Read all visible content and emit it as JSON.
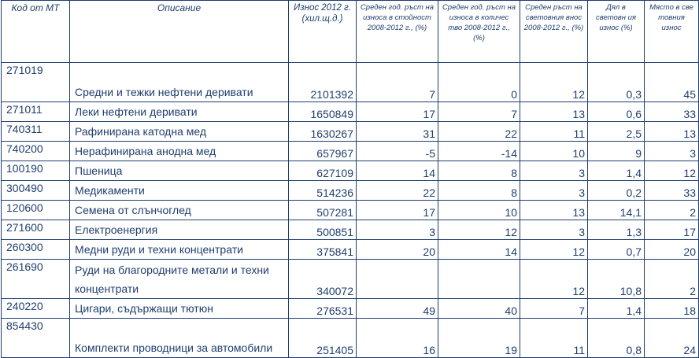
{
  "headers": {
    "code": "Код от МТ",
    "description": "Описание",
    "export": "Износ 2012 г. (хил.щ.д.)",
    "growth_value": "Среден год. ръст на износа в стойност 2008-2012 г., (%)",
    "growth_quantity": "Среден год. ръст на износа в количес тво 2008-2012 г., (%)",
    "world_growth": "Среден ръст на световния внос 2008-2012 г., (%)",
    "world_share": "Дял в световн ия износ (%)",
    "world_rank": "Място в све товния износ"
  },
  "rows": [
    {
      "code": "271019",
      "description": "Средни и тежки нефтени деривати",
      "export": "2101392",
      "growth_value": "7",
      "growth_quantity": "0",
      "world_growth": "12",
      "world_share": "0,3",
      "world_rank": "45"
    },
    {
      "code": "271011",
      "description": "Леки нефтени деривати",
      "export": "1650849",
      "growth_value": "17",
      "growth_quantity": "7",
      "world_growth": "13",
      "world_share": "0,6",
      "world_rank": "33"
    },
    {
      "code": "740311",
      "description": "Рафинирана катодна мед",
      "export": "1630267",
      "growth_value": "31",
      "growth_quantity": "22",
      "world_growth": "11",
      "world_share": "2,5",
      "world_rank": "13"
    },
    {
      "code": "740200",
      "description": "Нерафинирана анодна мед",
      "export": "657967",
      "growth_value": "-5",
      "growth_quantity": "-14",
      "world_growth": "10",
      "world_share": "9",
      "world_rank": "3"
    },
    {
      "code": "100190",
      "description": "Пшеница",
      "export": "627109",
      "growth_value": "14",
      "growth_quantity": "8",
      "world_growth": "3",
      "world_share": "1,4",
      "world_rank": "12"
    },
    {
      "code": "300490",
      "description": "Медикаменти",
      "export": "514236",
      "growth_value": "22",
      "growth_quantity": "8",
      "world_growth": "3",
      "world_share": "0,2",
      "world_rank": "33"
    },
    {
      "code": "120600",
      "description": "Семена от слънчоглед",
      "export": "507281",
      "growth_value": "17",
      "growth_quantity": "10",
      "world_growth": "13",
      "world_share": "14,1",
      "world_rank": "2"
    },
    {
      "code": "271600",
      "description": "Електроенергия",
      "export": "500851",
      "growth_value": "3",
      "growth_quantity": "12",
      "world_growth": "3",
      "world_share": "1,3",
      "world_rank": "17"
    },
    {
      "code": "260300",
      "description": "Медни руди и техни концентрати",
      "export": "375841",
      "growth_value": "20",
      "growth_quantity": "14",
      "world_growth": "12",
      "world_share": "0,7",
      "world_rank": "20"
    },
    {
      "code": "261690",
      "description": "Руди на благородните метали и техни концентрати",
      "export": "340072",
      "growth_value": "",
      "growth_quantity": "",
      "world_growth": "12",
      "world_share": "10,8",
      "world_rank": "2"
    },
    {
      "code": "240220",
      "description": "Цигари, съдържащи тютюн",
      "export": "276531",
      "growth_value": "49",
      "growth_quantity": "40",
      "world_growth": "7",
      "world_share": "1,4",
      "world_rank": "18"
    },
    {
      "code": "854430",
      "description": "Комплекти проводници за автомобили",
      "export": "251405",
      "growth_value": "16",
      "growth_quantity": "19",
      "world_growth": "11",
      "world_share": "0,8",
      "world_rank": "24"
    }
  ]
}
